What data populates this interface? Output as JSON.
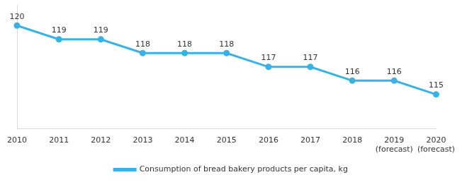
{
  "chart_data": {
    "type": "line",
    "categories": [
      "2010",
      "2011",
      "2012",
      "2013",
      "2014",
      "2015",
      "2016",
      "2017",
      "2018",
      "2019 (forecast)",
      "2020 (forecast)"
    ],
    "series": [
      {
        "name": "Consumption of bread bakery products per capita, kg",
        "color": "#35b3e6",
        "values": [
          120,
          119,
          119,
          118,
          118,
          118,
          117,
          117,
          116,
          116,
          115
        ],
        "marker": "circle"
      }
    ],
    "ylim": [
      112.5,
      121.5
    ],
    "grid": false,
    "legend": "bottom",
    "data_labels": true,
    "tick_labels": "x"
  }
}
